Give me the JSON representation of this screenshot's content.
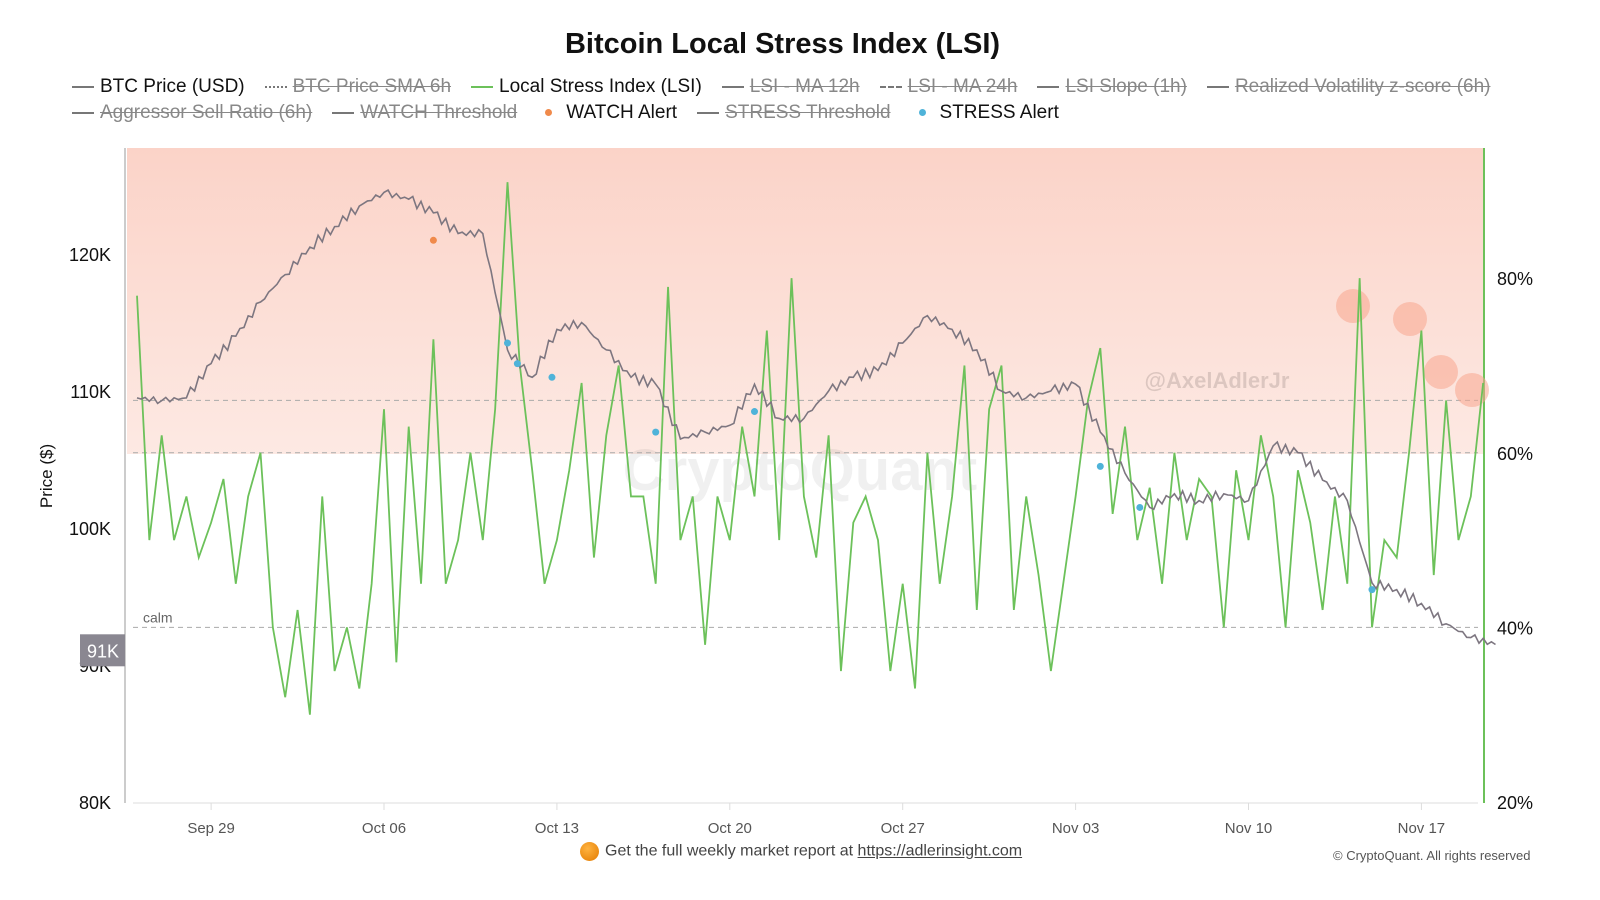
{
  "chart_data": {
    "type": "line",
    "title": "Bitcoin Local Stress Index (LSI)",
    "ylabel": "Price ($)",
    "ylim": [
      80000,
      127000
    ],
    "y2lim": [
      20,
      95
    ],
    "y_ticks": [
      "80K",
      "90K",
      "100K",
      "110K",
      "120K"
    ],
    "y2_ticks": [
      "20%",
      "40%",
      "60%",
      "80%"
    ],
    "x_ticks": [
      "Sep 29",
      "Oct 06",
      "Oct 13",
      "Oct 20",
      "Oct 27",
      "Nov 03",
      "Nov 10",
      "Nov 17"
    ],
    "legend": [
      {
        "label": "BTC Price (USD)",
        "active": true,
        "style": "line",
        "color": "#777777"
      },
      {
        "label": "BTC Price SMA 6h",
        "active": false,
        "style": "dotted",
        "color": "#777777"
      },
      {
        "label": "Local Stress Index (LSI)",
        "active": true,
        "style": "line",
        "color": "#6cc15a"
      },
      {
        "label": "LSI - MA 12h",
        "active": false,
        "style": "line",
        "color": "#777777"
      },
      {
        "label": "LSI - MA 24h",
        "active": false,
        "style": "dashed",
        "color": "#777777"
      },
      {
        "label": "LSI Slope (1h)",
        "active": false,
        "style": "line",
        "color": "#777777"
      },
      {
        "label": "Realized Volatility z-score (6h)",
        "active": false,
        "style": "line",
        "color": "#777777"
      },
      {
        "label": "Aggressor Sell Ratio (6h)",
        "active": false,
        "style": "line",
        "color": "#777777"
      },
      {
        "label": "WATCH Threshold",
        "active": false,
        "style": "line",
        "color": "#777777"
      },
      {
        "label": "WATCH Alert",
        "active": true,
        "style": "dot",
        "color": "#f08a4b"
      },
      {
        "label": "STRESS Threshold",
        "active": false,
        "style": "line",
        "color": "#777777"
      },
      {
        "label": "STRESS Alert",
        "active": true,
        "style": "dot",
        "color": "#4fb3d9"
      }
    ],
    "price_series": {
      "name": "BTC Price (USD)",
      "start": "Sep 26",
      "step": "1d",
      "values": [
        109.5,
        109.3,
        109.5,
        112,
        114,
        116.5,
        118.5,
        120.5,
        122,
        123.5,
        124.5,
        124,
        123,
        121.5,
        121.5,
        113,
        111,
        114.5,
        115,
        113,
        111,
        110.5,
        106.5,
        107,
        107.5,
        110.5,
        108,
        108,
        110,
        111,
        111.5,
        113.5,
        115.5,
        114.5,
        113,
        110,
        109.5,
        110,
        110.5,
        107,
        104,
        101.5,
        102.5,
        102,
        102.5,
        102,
        106,
        105.5,
        103.5,
        102,
        96,
        95.5,
        94.5,
        93,
        92,
        91.5
      ]
    },
    "lsi_series": {
      "name": "Local Stress Index (LSI)",
      "start": "Sep 26",
      "step": "12h",
      "values": [
        78,
        50,
        62,
        50,
        55,
        48,
        52,
        57,
        45,
        55,
        60,
        40,
        32,
        42,
        30,
        55,
        35,
        40,
        33,
        45,
        65,
        36,
        63,
        45,
        73,
        45,
        50,
        60,
        50,
        65,
        91,
        70,
        58,
        45,
        50,
        58,
        68,
        48,
        62,
        70,
        55,
        55,
        45,
        79,
        50,
        55,
        38,
        55,
        50,
        63,
        55,
        74,
        50,
        80,
        55,
        48,
        62,
        35,
        52,
        55,
        50,
        35,
        45,
        33,
        60,
        45,
        55,
        70,
        42,
        65,
        70,
        42,
        55,
        46,
        35,
        45,
        55,
        66,
        72,
        53,
        63,
        50,
        56,
        45,
        60,
        50,
        57,
        55,
        40,
        58,
        50,
        62,
        55,
        40,
        58,
        52,
        42,
        55,
        45,
        80,
        40,
        50,
        48,
        60,
        74,
        46,
        66,
        50,
        55,
        68
      ]
    },
    "watch_alerts": [
      {
        "date": "Oct 08",
        "price": 121
      }
    ],
    "stress_alerts": [
      {
        "date": "Oct 11",
        "price": 113.5
      },
      {
        "date": "Oct 11",
        "price": 112
      },
      {
        "date": "Oct 12",
        "price": 111
      },
      {
        "date": "Oct 17",
        "price": 107
      },
      {
        "date": "Oct 21",
        "price": 108.5
      },
      {
        "date": "Nov 04",
        "price": 104.5
      },
      {
        "date": "Nov 05",
        "price": 101.5
      },
      {
        "date": "Nov 15",
        "price": 95.5
      }
    ],
    "reference_lines": [
      {
        "value": 66,
        "label": ""
      },
      {
        "value": 60,
        "label": ""
      },
      {
        "value": 40,
        "label": "calm"
      }
    ],
    "current_price_label": "91K",
    "grid": false
  },
  "watermarks": [
    "CryptoQuant",
    "@AxelAdlerJr"
  ],
  "footer": {
    "text": "Get the full weekly market report at ",
    "link": "https://adlerinsight.com",
    "copyright": "© CryptoQuant. All rights reserved"
  }
}
